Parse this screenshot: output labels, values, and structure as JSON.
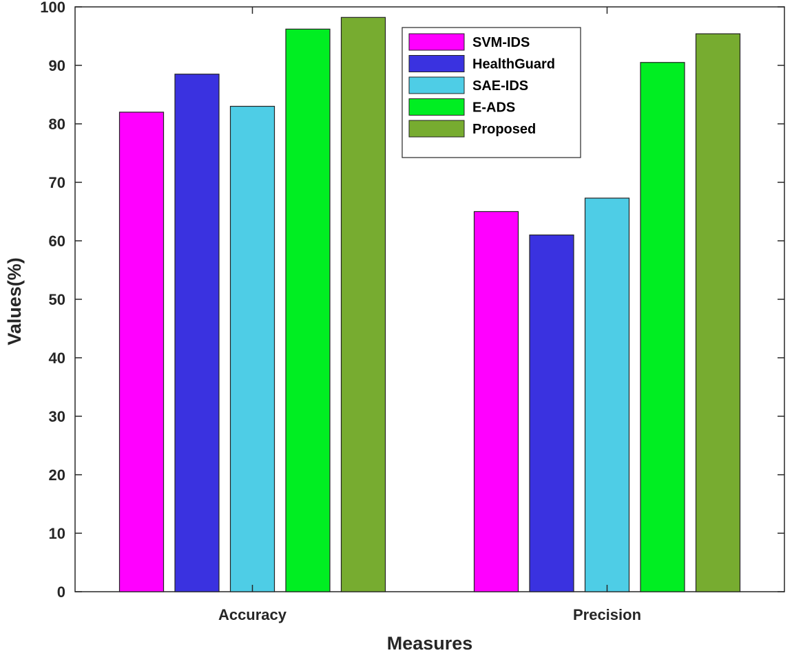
{
  "chart_data": {
    "type": "bar",
    "xlabel": "Measures",
    "ylabel": "Values(%)",
    "categories": [
      "Accuracy",
      "Precision"
    ],
    "ylim": [
      0,
      100
    ],
    "yticks": [
      0,
      10,
      20,
      30,
      40,
      50,
      60,
      70,
      80,
      90,
      100
    ],
    "grid": false,
    "legend_position": "top-right",
    "series": [
      {
        "name": "SVM-IDS",
        "color": "#ff00ff",
        "values": [
          82,
          65
        ]
      },
      {
        "name": "HealthGuard",
        "color": "#3a32e0",
        "values": [
          88.5,
          61
        ]
      },
      {
        "name": "SAE-IDS",
        "color": "#4ecde6",
        "values": [
          83,
          67.3
        ]
      },
      {
        "name": "E-ADS",
        "color": "#00ee22",
        "values": [
          96.2,
          90.5
        ]
      },
      {
        "name": "Proposed",
        "color": "#77ac30",
        "values": [
          98.2,
          95.4
        ]
      }
    ]
  }
}
